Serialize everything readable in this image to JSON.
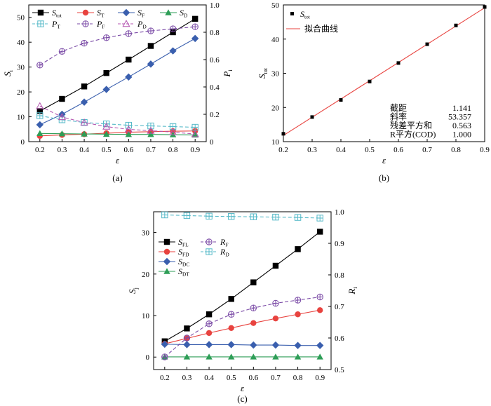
{
  "chart_data": [
    {
      "type": "line",
      "panel_label": "(a)",
      "xlabel": "ε",
      "ylabel_left": "S",
      "ylabel_left_sub": "i",
      "ylabel_right": "P",
      "ylabel_right_sub": "i",
      "xlim": [
        0.15,
        0.95
      ],
      "xticks": [
        "0.2",
        "0.3",
        "0.4",
        "0.5",
        "0.6",
        "0.7",
        "0.8",
        "0.9"
      ],
      "ylim_left": [
        0,
        55
      ],
      "yticks_left": [
        "0",
        "10",
        "20",
        "30",
        "40",
        "50"
      ],
      "ylim_right": [
        0,
        1.0
      ],
      "yticks_right": [
        "0",
        "0.2",
        "0.4",
        "0.6",
        "0.8",
        "1.0"
      ],
      "legend_position": "top",
      "x": [
        0.2,
        0.3,
        0.4,
        0.5,
        0.6,
        0.7,
        0.8,
        0.9
      ],
      "series": [
        {
          "name": "S",
          "sub": "tot",
          "axis": "left",
          "color": "#000000",
          "marker": "square",
          "dash": false,
          "values": [
            12.3,
            17.2,
            22.2,
            27.6,
            33.0,
            38.5,
            44.0,
            49.4
          ]
        },
        {
          "name": "S",
          "sub": "T",
          "axis": "left",
          "color": "#e8433f",
          "marker": "circle",
          "dash": false,
          "values": [
            2.3,
            2.7,
            3.0,
            3.4,
            3.8,
            4.0,
            4.2,
            4.3
          ]
        },
        {
          "name": "S",
          "sub": "F",
          "axis": "left",
          "color": "#3a5fae",
          "marker": "diamond",
          "dash": false,
          "values": [
            6.8,
            11.0,
            15.9,
            21.0,
            26.0,
            31.2,
            36.5,
            41.5
          ]
        },
        {
          "name": "S",
          "sub": "D",
          "axis": "left",
          "color": "#2e9e57",
          "marker": "triangle",
          "dash": false,
          "values": [
            3.3,
            3.2,
            3.1,
            3.0,
            2.9,
            2.9,
            2.8,
            2.7
          ]
        },
        {
          "name": "P",
          "sub": "T",
          "axis": "right",
          "color": "#55b9c8",
          "marker": "square-cross",
          "dash": true,
          "values": [
            0.19,
            0.16,
            0.14,
            0.13,
            0.12,
            0.115,
            0.11,
            0.105
          ]
        },
        {
          "name": "P",
          "sub": "F",
          "axis": "right",
          "color": "#7a4aa6",
          "marker": "circle-cross",
          "dash": true,
          "values": [
            0.56,
            0.66,
            0.72,
            0.76,
            0.79,
            0.81,
            0.825,
            0.84
          ]
        },
        {
          "name": "P",
          "sub": "D",
          "axis": "right",
          "color": "#b455b0",
          "marker": "triangle-open",
          "dash": true,
          "values": [
            0.26,
            0.18,
            0.14,
            0.11,
            0.09,
            0.08,
            0.07,
            0.055
          ]
        }
      ]
    },
    {
      "type": "scatter",
      "panel_label": "(b)",
      "xlabel": "ε",
      "ylabel": "S",
      "ylabel_sub": "tot",
      "xlim": [
        0.2,
        0.9
      ],
      "xticks": [
        "0.2",
        "0.3",
        "0.4",
        "0.5",
        "0.6",
        "0.7",
        "0.8",
        "0.9"
      ],
      "ylim": [
        10,
        50
      ],
      "yticks": [
        "10",
        "20",
        "30",
        "40",
        "50"
      ],
      "legend_position": "top-left",
      "points": {
        "name": "S",
        "sub": "tot",
        "color": "#000000",
        "x": [
          0.2,
          0.3,
          0.4,
          0.5,
          0.6,
          0.7,
          0.8,
          0.9
        ],
        "y": [
          12.3,
          17.2,
          22.2,
          27.6,
          33.0,
          38.5,
          44.0,
          49.4
        ]
      },
      "fit": {
        "name": "拟合曲线",
        "color": "#e8433f",
        "intercept": 1.141,
        "slope": 53.357
      },
      "stats": [
        {
          "label": "截距",
          "value": "1.141"
        },
        {
          "label": "斜率",
          "value": "53.357"
        },
        {
          "label": "残差平方和",
          "value": "0.563"
        },
        {
          "label": "R平方(COD)",
          "value": "1.000"
        }
      ]
    },
    {
      "type": "line",
      "panel_label": "(c)",
      "xlabel": "ε",
      "ylabel_left": "S",
      "ylabel_left_sub": "j",
      "ylabel_right": "R",
      "ylabel_right_sub": "i",
      "xlim": [
        0.15,
        0.95
      ],
      "xticks": [
        "0.2",
        "0.3",
        "0.4",
        "0.5",
        "0.6",
        "0.7",
        "0.8",
        "0.9"
      ],
      "ylim_left": [
        -3,
        35
      ],
      "yticks_left": [
        "0",
        "10",
        "20",
        "30"
      ],
      "ylim_right": [
        0.5,
        1.0
      ],
      "yticks_right": [
        "0.5",
        "0.6",
        "0.7",
        "0.8",
        "0.9",
        "1.0"
      ],
      "legend_position": "top-left",
      "x": [
        0.2,
        0.3,
        0.4,
        0.5,
        0.6,
        0.7,
        0.8,
        0.9
      ],
      "series": [
        {
          "name": "S",
          "sub": "FL",
          "axis": "left",
          "color": "#000000",
          "marker": "square",
          "dash": false,
          "values": [
            3.8,
            6.9,
            10.3,
            14.0,
            18.0,
            22.0,
            26.0,
            30.2
          ]
        },
        {
          "name": "S",
          "sub": "FD",
          "axis": "left",
          "color": "#e8433f",
          "marker": "circle",
          "dash": false,
          "values": [
            3.2,
            4.5,
            5.8,
            7.0,
            8.2,
            9.3,
            10.3,
            11.3
          ]
        },
        {
          "name": "S",
          "sub": "DC",
          "axis": "left",
          "color": "#3a5fae",
          "marker": "diamond",
          "dash": false,
          "values": [
            3.1,
            3.0,
            3.0,
            3.0,
            2.9,
            2.9,
            2.8,
            2.8
          ]
        },
        {
          "name": "S",
          "sub": "DT",
          "axis": "left",
          "color": "#2e9e57",
          "marker": "triangle",
          "dash": false,
          "values": [
            0.05,
            0.05,
            0.05,
            0.05,
            0.05,
            0.05,
            0.05,
            0.05
          ]
        },
        {
          "name": "R",
          "sub": "F",
          "axis": "right",
          "color": "#7a4aa6",
          "marker": "circle-cross",
          "dash": true,
          "values": [
            0.54,
            0.6,
            0.645,
            0.675,
            0.695,
            0.71,
            0.72,
            0.73
          ]
        },
        {
          "name": "R",
          "sub": "D",
          "axis": "right",
          "color": "#55b9c8",
          "marker": "square-cross",
          "dash": true,
          "values": [
            0.99,
            0.988,
            0.986,
            0.985,
            0.984,
            0.983,
            0.982,
            0.98
          ]
        }
      ]
    }
  ]
}
